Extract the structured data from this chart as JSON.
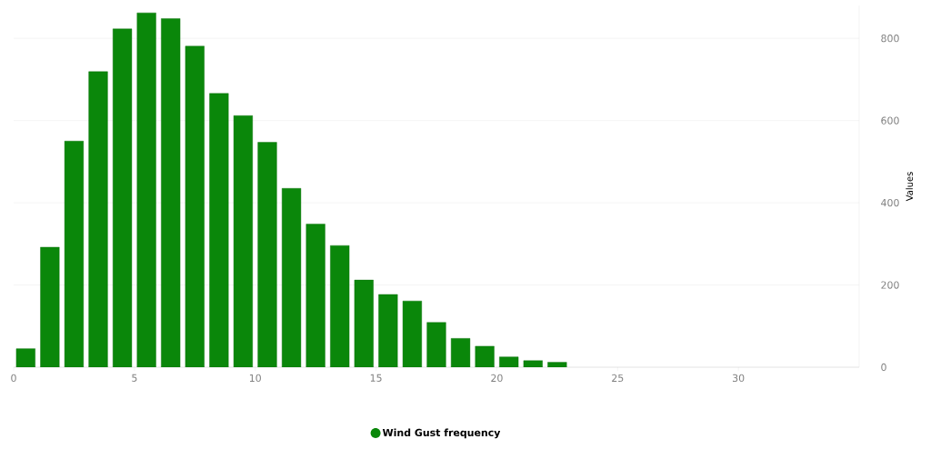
{
  "chart_data": {
    "type": "histogram",
    "ylabel": "Values",
    "bins": [
      0,
      1,
      2,
      3,
      4,
      5,
      6,
      7,
      8,
      9,
      10,
      11,
      12,
      13,
      14,
      15,
      16,
      17,
      18,
      19,
      20,
      21,
      22,
      23
    ],
    "series": [
      {
        "name": "Wind Gust frequency",
        "color": "#0a870a",
        "values": [
          45,
          292,
          550,
          719,
          823,
          862,
          848,
          781,
          666,
          612,
          547,
          435,
          348,
          296,
          212,
          177,
          161,
          109,
          70,
          51,
          25,
          16,
          12
        ]
      }
    ],
    "xlim": [
      0,
      35
    ],
    "xticks": [
      0,
      5,
      10,
      15,
      20,
      25,
      30
    ],
    "ylim": [
      0,
      880
    ],
    "yticks": [
      0,
      200,
      400,
      600,
      800
    ],
    "grid": "y",
    "legend": "bottom"
  }
}
